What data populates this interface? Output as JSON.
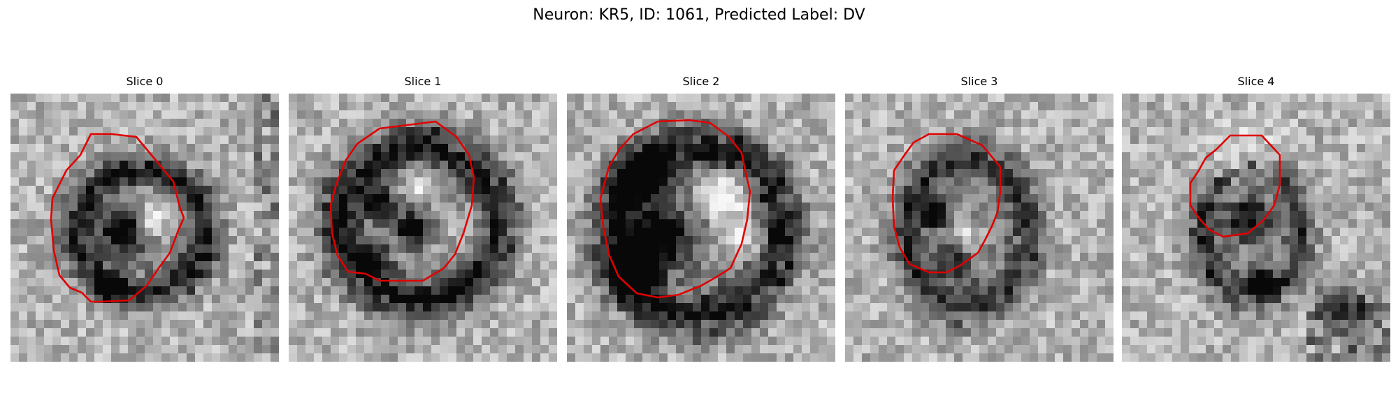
{
  "figure": {
    "title": "Neuron: KR5, ID: 1061, Predicted Label: DV"
  },
  "contour_color": "#e00000",
  "panels": [
    {
      "title": "Slice 0"
    },
    {
      "title": "Slice 1"
    },
    {
      "title": "Slice 2"
    },
    {
      "title": "Slice 3"
    },
    {
      "title": "Slice 4"
    }
  ]
}
